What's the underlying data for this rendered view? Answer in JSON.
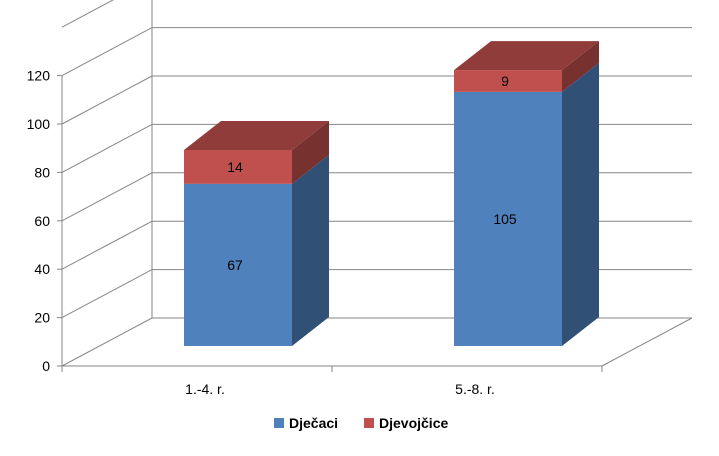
{
  "chart_data": {
    "type": "bar",
    "stacked": true,
    "three_d": true,
    "categories": [
      "1.-4. r.",
      "5.-8. r."
    ],
    "series": [
      {
        "name": "Dječaci",
        "values": [
          67,
          105
        ],
        "color": "#4F81BD"
      },
      {
        "name": "Djevojčice",
        "values": [
          14,
          9
        ],
        "color": "#C0504D"
      }
    ],
    "yticks": [
      0,
      20,
      40,
      60,
      80,
      100,
      120
    ],
    "ylim": [
      0,
      140
    ],
    "grid": true,
    "legend_position": "bottom"
  }
}
